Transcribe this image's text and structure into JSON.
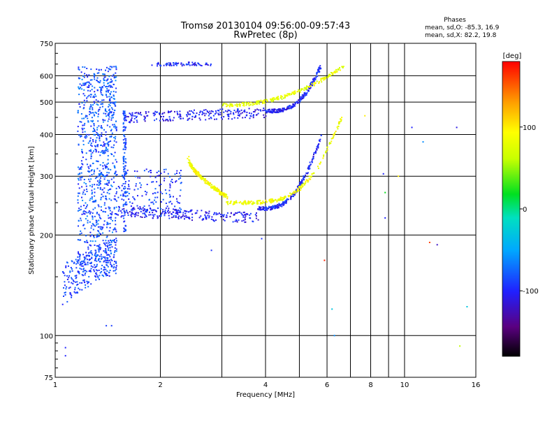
{
  "chart_data": {
    "type": "scatter",
    "title": "Tromsø 20130104 09:56:00-09:57:43",
    "subtitle": "RwPretec (8p)",
    "xlabel": "Frequency [MHz]",
    "ylabel": "Stationary phase Virtual Height [km]",
    "x_scale": "log",
    "y_scale": "log",
    "xlim": [
      1,
      16
    ],
    "ylim": [
      75,
      750
    ],
    "x_ticks": [
      1,
      2,
      4,
      6,
      8,
      10,
      16
    ],
    "x_tick_labels": [
      "1",
      "2",
      "4",
      "6",
      "8",
      "10",
      "16"
    ],
    "y_ticks": [
      75,
      100,
      200,
      300,
      400,
      500,
      600,
      750
    ],
    "y_tick_labels": [
      "75",
      "100",
      "200",
      "300",
      "400",
      "500",
      "600",
      "750"
    ],
    "x_minor_lines": [
      3,
      5,
      7,
      9
    ],
    "grid": true,
    "phases_box": {
      "heading": "Phases",
      "line_o": "mean, sd,O: -85.3, 16.9",
      "line_x": "mean, sd,X: 82.2, 19.8"
    },
    "colorbar": {
      "label": "[deg]",
      "range": [
        -180,
        180
      ],
      "ticks": [
        100,
        0,
        -100
      ],
      "tick_labels": [
        "100",
        "0",
        "-100"
      ],
      "colormap": "rainbow"
    },
    "traces": [
      {
        "name": "",
        "f_start": 1.05,
        "f_end": 1.5,
        "h_start": 135,
        "h_end": 170,
        "phase": -90,
        "kind": "band_low"
      },
      {
        "name": "",
        "f_start": 1.35,
        "f_end": 1.5,
        "h_start": 150,
        "h_end": 640,
        "phase": -75,
        "kind": "spread_column"
      },
      {
        "name": "",
        "f_start": 1.5,
        "f_end": 3.8,
        "h_start": 235,
        "h_end": 225,
        "phase": -105,
        "kind": "o_low"
      },
      {
        "name": "",
        "f_start": 3.8,
        "f_end": 5.8,
        "h_start": 240,
        "h_end": 400,
        "phase": -100,
        "kind": "o_low_rise"
      },
      {
        "name": "",
        "f_start": 2.4,
        "f_end": 3.1,
        "h_start": 340,
        "h_end": 260,
        "phase": 90,
        "kind": "x_low_branch"
      },
      {
        "name": "",
        "f_start": 3.1,
        "f_end": 6.6,
        "h_start": 250,
        "h_end": 450,
        "phase": 85,
        "kind": "x_low"
      },
      {
        "name": "",
        "f_start": 1.6,
        "f_end": 4.0,
        "h_start": 450,
        "h_end": 465,
        "phase": -105,
        "kind": "o_high"
      },
      {
        "name": "",
        "f_start": 4.0,
        "f_end": 5.75,
        "h_start": 470,
        "h_end": 640,
        "phase": -100,
        "kind": "o_high_rise"
      },
      {
        "name": "",
        "f_start": 3.0,
        "f_end": 6.7,
        "h_start": 490,
        "h_end": 640,
        "phase": 80,
        "kind": "x_high"
      },
      {
        "name": "",
        "f_start": 1.85,
        "f_end": 2.8,
        "h_start": 650,
        "h_end": 650,
        "phase": -100,
        "kind": "top_echo"
      }
    ],
    "isolated_points": [
      {
        "f": 1.07,
        "h": 92,
        "phase": -100
      },
      {
        "f": 1.07,
        "h": 87,
        "phase": -100
      },
      {
        "f": 1.4,
        "h": 107,
        "phase": -90
      },
      {
        "f": 1.45,
        "h": 107,
        "phase": -90
      },
      {
        "f": 2.8,
        "h": 180,
        "phase": -95
      },
      {
        "f": 3.9,
        "h": 195,
        "phase": -95
      },
      {
        "f": 5.9,
        "h": 168,
        "phase": 170
      },
      {
        "f": 6.2,
        "h": 120,
        "phase": -30
      },
      {
        "f": 6.3,
        "h": 100,
        "phase": -60
      },
      {
        "f": 7.7,
        "h": 455,
        "phase": 100
      },
      {
        "f": 8.7,
        "h": 305,
        "phase": -100
      },
      {
        "f": 8.8,
        "h": 268,
        "phase": 20
      },
      {
        "f": 8.8,
        "h": 225,
        "phase": -100
      },
      {
        "f": 9.6,
        "h": 300,
        "phase": 100
      },
      {
        "f": 10.5,
        "h": 420,
        "phase": -100
      },
      {
        "f": 11.3,
        "h": 380,
        "phase": -60
      },
      {
        "f": 11.8,
        "h": 190,
        "phase": 160
      },
      {
        "f": 12.4,
        "h": 187,
        "phase": -120
      },
      {
        "f": 14.1,
        "h": 420,
        "phase": -110
      },
      {
        "f": 14.4,
        "h": 93,
        "phase": 60
      },
      {
        "f": 15.1,
        "h": 122,
        "phase": -30
      }
    ]
  }
}
